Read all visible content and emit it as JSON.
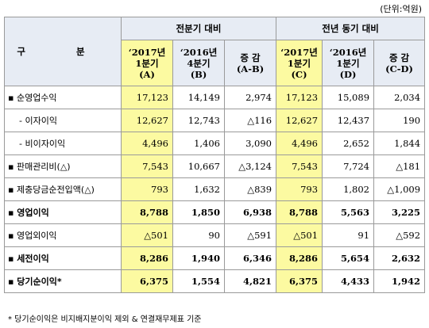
{
  "unit_label": "(단위:억원)",
  "header": {
    "category": "구 분",
    "group1": "전분기 대비",
    "group2": "전년 동기 대비",
    "cols": [
      {
        "l1": "‘2017년",
        "l2": "1분기",
        "l3": "(A)"
      },
      {
        "l1": "‘2016년",
        "l2": "4분기",
        "l3": "(B)"
      },
      {
        "l1": "증 감",
        "l2": "(A-B)",
        "l3": ""
      },
      {
        "l1": "‘2017년",
        "l2": "1분기",
        "l3": "(C)"
      },
      {
        "l1": "‘2016년",
        "l2": "1분기",
        "l3": "(D)"
      },
      {
        "l1": "증 감",
        "l2": "(C-D)",
        "l3": ""
      }
    ]
  },
  "rows": [
    {
      "label": "▪ 순영업수익",
      "values": [
        "17,123",
        "14,149",
        "2,974",
        "17,123",
        "15,089",
        "2,034"
      ]
    },
    {
      "label": "- 이자이익",
      "values": [
        "12,627",
        "12,743",
        "△116",
        "12,627",
        "12,437",
        "190"
      ]
    },
    {
      "label": "- 비이자이익",
      "values": [
        "4,496",
        "1,406",
        "3,090",
        "4,496",
        "2,652",
        "1,844"
      ]
    },
    {
      "label": "▪ 판매관리비(△)",
      "values": [
        "7,543",
        "10,667",
        "△3,124",
        "7,543",
        "7,724",
        "△181"
      ]
    },
    {
      "label": "▪ 제충당금순전입액(△)",
      "values": [
        "793",
        "1,632",
        "△839",
        "793",
        "1,802",
        "△1,009"
      ]
    },
    {
      "label": "▪ 영업이익",
      "values": [
        "8,788",
        "1,850",
        "6,938",
        "8,788",
        "5,563",
        "3,225"
      ]
    },
    {
      "label": "▪ 영업외이익",
      "values": [
        "△501",
        "90",
        "△591",
        "△501",
        "91",
        "△592"
      ]
    },
    {
      "label": "▪ 세전이익",
      "values": [
        "8,286",
        "1,940",
        "6,346",
        "8,286",
        "5,654",
        "2,632"
      ]
    },
    {
      "label": "▪ 당기순이익*",
      "values": [
        "6,375",
        "1,554",
        "4,821",
        "6,375",
        "4,433",
        "1,942"
      ]
    }
  ],
  "footnote": "* 당기순이익은 비지배지분이익 제외 & 연결재무제표 기준",
  "colors": {
    "header_bg": "#e7ecf4",
    "highlight": "#fcfaa1",
    "border": "#9a9a9a"
  }
}
